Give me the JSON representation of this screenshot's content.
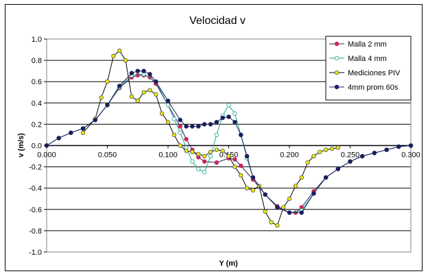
{
  "chart_data": {
    "type": "line",
    "title": "Velocidad v",
    "xlabel": "Y (m)",
    "ylabel": "v (m/s)",
    "xlim": [
      0,
      0.3
    ],
    "ylim": [
      -1.0,
      1.0
    ],
    "x_ticks": [
      "0.000",
      "0.050",
      "0.100",
      "0.150",
      "0.200",
      "0.250",
      "0.300"
    ],
    "y_ticks": [
      "1.0",
      "0.8",
      "0.6",
      "0.4",
      "0.2",
      "0.0",
      "-0.2",
      "-0.4",
      "-0.6",
      "-0.8",
      "-1.0"
    ],
    "grid": "horizontal",
    "legend_position": "top-right",
    "series": [
      {
        "name": "Malla 2 mm",
        "color": "#c8285a",
        "marker_fill": "#c8285a",
        "line_color": "#2a1b5e",
        "x": [
          0.0,
          0.01,
          0.02,
          0.03,
          0.04,
          0.05,
          0.06,
          0.07,
          0.075,
          0.08,
          0.085,
          0.09,
          0.1,
          0.11,
          0.115,
          0.12,
          0.125,
          0.13,
          0.14,
          0.15,
          0.155,
          0.16,
          0.17,
          0.18,
          0.19,
          0.2,
          0.205,
          0.21,
          0.22,
          0.23,
          0.24,
          0.25,
          0.26,
          0.27,
          0.28,
          0.29,
          0.3
        ],
        "y": [
          0.0,
          0.07,
          0.12,
          0.16,
          0.24,
          0.38,
          0.54,
          0.64,
          0.66,
          0.66,
          0.64,
          0.58,
          0.38,
          0.18,
          0.06,
          -0.04,
          -0.11,
          -0.15,
          -0.16,
          -0.12,
          -0.13,
          -0.19,
          -0.32,
          -0.46,
          -0.57,
          -0.63,
          -0.63,
          -0.58,
          -0.43,
          -0.3,
          -0.22,
          -0.15,
          -0.1,
          -0.07,
          -0.04,
          -0.01,
          0.0
        ]
      },
      {
        "name": "Malla 4 mm",
        "color": "#1aa389",
        "marker_fill": "#ffffff",
        "line_color": "#1aa389",
        "x": [
          0.0,
          0.01,
          0.02,
          0.03,
          0.04,
          0.05,
          0.06,
          0.07,
          0.08,
          0.09,
          0.1,
          0.105,
          0.11,
          0.115,
          0.12,
          0.125,
          0.13,
          0.135,
          0.14,
          0.145,
          0.15,
          0.155,
          0.16,
          0.165,
          0.17,
          0.18,
          0.19,
          0.2,
          0.21,
          0.22,
          0.23,
          0.24,
          0.25,
          0.26,
          0.27,
          0.28,
          0.29,
          0.3
        ],
        "y": [
          0.0,
          0.07,
          0.12,
          0.16,
          0.24,
          0.38,
          0.55,
          0.66,
          0.67,
          0.6,
          0.38,
          0.25,
          0.12,
          -0.02,
          -0.15,
          -0.22,
          -0.25,
          -0.1,
          0.1,
          0.28,
          0.38,
          0.3,
          0.1,
          -0.12,
          -0.3,
          -0.46,
          -0.58,
          -0.63,
          -0.61,
          -0.45,
          -0.3,
          -0.22,
          -0.15,
          -0.1,
          -0.07,
          -0.04,
          -0.01,
          0.0
        ]
      },
      {
        "name": "Mediciones PIV",
        "color": "#e8e80f",
        "marker_fill": "#e8e80f",
        "line_color": "#000000",
        "x": [
          0.03,
          0.04,
          0.045,
          0.05,
          0.055,
          0.06,
          0.065,
          0.07,
          0.075,
          0.08,
          0.085,
          0.09,
          0.095,
          0.1,
          0.105,
          0.11,
          0.115,
          0.12,
          0.125,
          0.13,
          0.135,
          0.14,
          0.145,
          0.15,
          0.155,
          0.16,
          0.165,
          0.17,
          0.175,
          0.18,
          0.185,
          0.19,
          0.195,
          0.2,
          0.205,
          0.21,
          0.215,
          0.22,
          0.225,
          0.23,
          0.235,
          0.24
        ],
        "y": [
          0.12,
          0.25,
          0.45,
          0.6,
          0.84,
          0.89,
          0.8,
          0.46,
          0.42,
          0.5,
          0.52,
          0.48,
          0.3,
          0.22,
          0.1,
          0.0,
          -0.05,
          -0.06,
          -0.08,
          -0.1,
          -0.06,
          -0.04,
          -0.05,
          -0.1,
          -0.2,
          -0.28,
          -0.4,
          -0.42,
          -0.38,
          -0.62,
          -0.72,
          -0.75,
          -0.58,
          -0.5,
          -0.38,
          -0.3,
          -0.16,
          -0.1,
          -0.06,
          -0.04,
          -0.03,
          -0.02
        ]
      },
      {
        "name": "4mm prom 60s",
        "color": "#1b1f5e",
        "marker_fill": "#1b1f5e",
        "line_color": "#1b1f5e",
        "x": [
          0.0,
          0.01,
          0.02,
          0.03,
          0.04,
          0.05,
          0.06,
          0.07,
          0.075,
          0.08,
          0.085,
          0.09,
          0.1,
          0.11,
          0.115,
          0.12,
          0.125,
          0.13,
          0.135,
          0.14,
          0.145,
          0.15,
          0.155,
          0.16,
          0.165,
          0.17,
          0.18,
          0.19,
          0.2,
          0.21,
          0.22,
          0.23,
          0.24,
          0.25,
          0.26,
          0.27,
          0.28,
          0.29,
          0.3
        ],
        "y": [
          0.0,
          0.07,
          0.12,
          0.16,
          0.24,
          0.38,
          0.56,
          0.68,
          0.7,
          0.7,
          0.67,
          0.6,
          0.42,
          0.24,
          0.18,
          0.18,
          0.18,
          0.2,
          0.2,
          0.22,
          0.26,
          0.27,
          0.22,
          0.1,
          -0.1,
          -0.3,
          -0.46,
          -0.58,
          -0.63,
          -0.63,
          -0.45,
          -0.3,
          -0.22,
          -0.15,
          -0.1,
          -0.07,
          -0.04,
          -0.01,
          0.0
        ]
      }
    ]
  }
}
